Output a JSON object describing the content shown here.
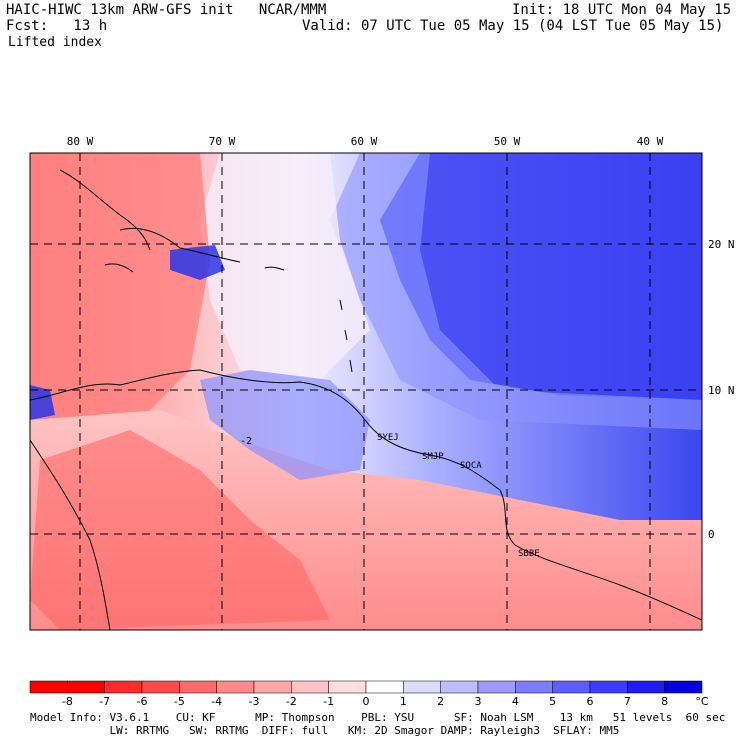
{
  "header": {
    "model_line": "HAIC-HIWC 13km ARW-GFS init   NCAR/MMM",
    "init_line": "Init: 18 UTC Mon 04 May 15",
    "fcst_line": "Fcst:   13 h",
    "valid_line": "Valid: 07 UTC Tue 05 May 15 (04 LST Tue 05 May 15)",
    "field_name": "Lifted index"
  },
  "map": {
    "lon_labels": [
      "80 W",
      "70 W",
      "60 W",
      "50 W",
      "40 W"
    ],
    "lat_labels": [
      "20 N",
      "10 N",
      "0"
    ],
    "stations": [
      "SYEJ",
      "SMJP",
      "SOCA",
      "SBBE"
    ],
    "contour_label": "-2",
    "colors": {
      "station": "#e040e0",
      "negative": "#ff4a4a",
      "positive": "#2030e0"
    }
  },
  "colorbar": {
    "tick_labels": [
      "-8",
      "-7",
      "-6",
      "-5",
      "-4",
      "-3",
      "-2",
      "-1",
      "0",
      "1",
      "2",
      "3",
      "4",
      "5",
      "6",
      "7",
      "8"
    ],
    "unit": "°C",
    "colors": [
      "#ff0000",
      "#ff2a2a",
      "#ff4a4a",
      "#ff6a6a",
      "#ff8888",
      "#ffa6a6",
      "#ffc2c2",
      "#ffdede",
      "#ffffff",
      "#dcdcff",
      "#bcbcff",
      "#9c9cff",
      "#7c7cff",
      "#5c5cff",
      "#3c3cff",
      "#1e1ef4",
      "#0000e0"
    ]
  },
  "footer": {
    "line1": "Model Info: V3.6.1    CU: KF      MP: Thompson    PBL: YSU      SF: Noah LSM    13 km   51 levels  60 sec",
    "line2": "            LW: RRTMG   SW: RRTMG  DIFF: full   KM: 2D Smagor DAMP: Rayleigh3  SFLAY: MM5"
  }
}
